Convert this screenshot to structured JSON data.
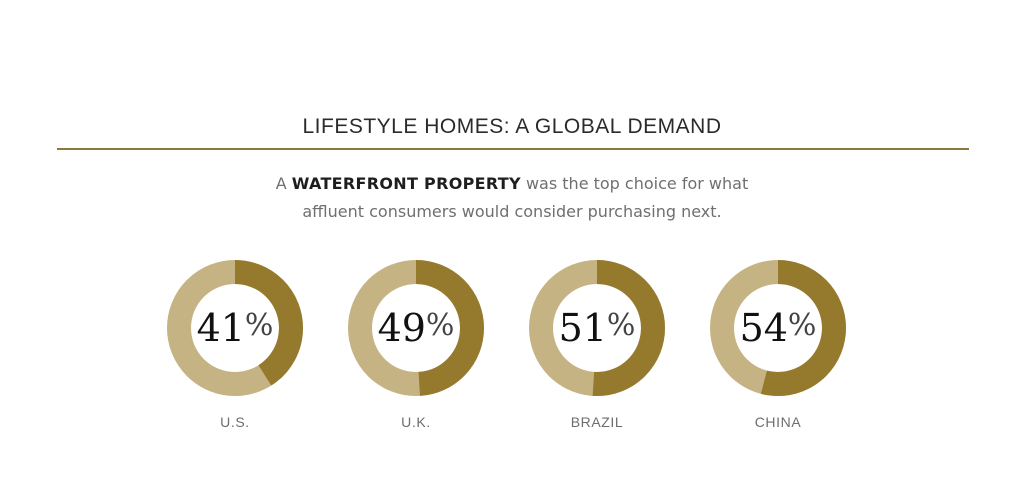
{
  "header": {
    "title": "LIFESTYLE HOMES: A GLOBAL DEMAND",
    "subtitle_pre": "A ",
    "subtitle_highlight": "WATERFRONT PROPERTY",
    "subtitle_post": " was the top choice for what",
    "subtitle_line2": "affluent consumers would consider purchasing next."
  },
  "colors": {
    "accent": "#957a2e",
    "remainder": "#c6b383",
    "rule": "#8c7a3b"
  },
  "chart_data": {
    "type": "pie",
    "style": "donut",
    "unit": "%",
    "categories": [
      "U.S.",
      "U.K.",
      "BRAZIL",
      "CHINA"
    ],
    "values": [
      41,
      49,
      51,
      54
    ],
    "labels": [
      "41",
      "49",
      "51",
      "54"
    ]
  }
}
